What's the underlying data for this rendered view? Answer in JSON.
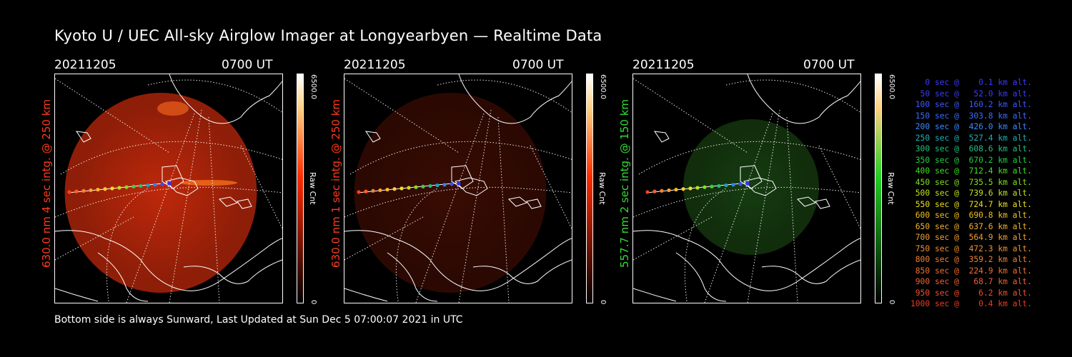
{
  "title": "Kyoto U / UEC All-sky Airglow Imager at Longyearbyen — Realtime Data",
  "panels": [
    {
      "date": "20211205",
      "time": "0700 UT",
      "ylabel": "630.0 nm  4 sec intg. @ 250 km",
      "label_color": "#ff3a1a",
      "colorbar_max": "6500.0",
      "colorbar_unit": "Raw Cnt",
      "colorbar_min": "0",
      "colorbar_color": "#ff2a00",
      "emission": "red",
      "brightness": 1.0
    },
    {
      "date": "20211205",
      "time": "0700 UT",
      "ylabel": "630.0 nm  1 sec intg. @ 250 km",
      "label_color": "#ff3a1a",
      "colorbar_max": "6500.0",
      "colorbar_unit": "Raw Cnt",
      "colorbar_min": "0",
      "colorbar_color": "#ff2a00",
      "emission": "red",
      "brightness": 0.3
    },
    {
      "date": "20211205",
      "time": "0700 UT",
      "ylabel": "557.7 nm  2 sec intg. @ 150 km",
      "label_color": "#33dd33",
      "colorbar_max": "6500.0",
      "colorbar_unit": "Raw Cnt",
      "colorbar_min": "0",
      "colorbar_color": "#22cc22",
      "emission": "green",
      "brightness": 0.55
    }
  ],
  "footer": "Bottom side is always Sunward, Last Updated at Sun Dec  5 07:00:07 2021 in UTC",
  "legend": [
    {
      "text": "   0 sec @    0.1 km alt.",
      "color": "#3a3aff"
    },
    {
      "text": "  50 sec @   52.0 km alt.",
      "color": "#3a3aff"
    },
    {
      "text": " 100 sec @  160.2 km alt.",
      "color": "#3a5aff"
    },
    {
      "text": " 150 sec @  303.8 km alt.",
      "color": "#3a6aff"
    },
    {
      "text": " 200 sec @  426.0 km alt.",
      "color": "#3a8aff"
    },
    {
      "text": " 250 sec @  527.4 km alt.",
      "color": "#20b0b0"
    },
    {
      "text": " 300 sec @  608.6 km alt.",
      "color": "#20c080"
    },
    {
      "text": " 350 sec @  670.2 km alt.",
      "color": "#20d040"
    },
    {
      "text": " 400 sec @  712.4 km alt.",
      "color": "#40e020"
    },
    {
      "text": " 450 sec @  735.5 km alt.",
      "color": "#80e020"
    },
    {
      "text": " 500 sec @  739.6 km alt.",
      "color": "#c0e020"
    },
    {
      "text": " 550 sec @  724.7 km alt.",
      "color": "#e8e020"
    },
    {
      "text": " 600 sec @  690.8 km alt.",
      "color": "#f0c020"
    },
    {
      "text": " 650 sec @  637.6 km alt.",
      "color": "#f0b030"
    },
    {
      "text": " 700 sec @  564.9 km alt.",
      "color": "#f0a030"
    },
    {
      "text": " 750 sec @  472.3 km alt.",
      "color": "#f09030"
    },
    {
      "text": " 800 sec @  359.2 km alt.",
      "color": "#f08030"
    },
    {
      "text": " 850 sec @  224.9 km alt.",
      "color": "#f07030"
    },
    {
      "text": " 900 sec @   68.7 km alt.",
      "color": "#f06030"
    },
    {
      "text": " 950 sec @    6.2 km alt.",
      "color": "#f05030"
    },
    {
      "text": "1000 sec @    0.4 km alt.",
      "color": "#f03a20"
    }
  ]
}
